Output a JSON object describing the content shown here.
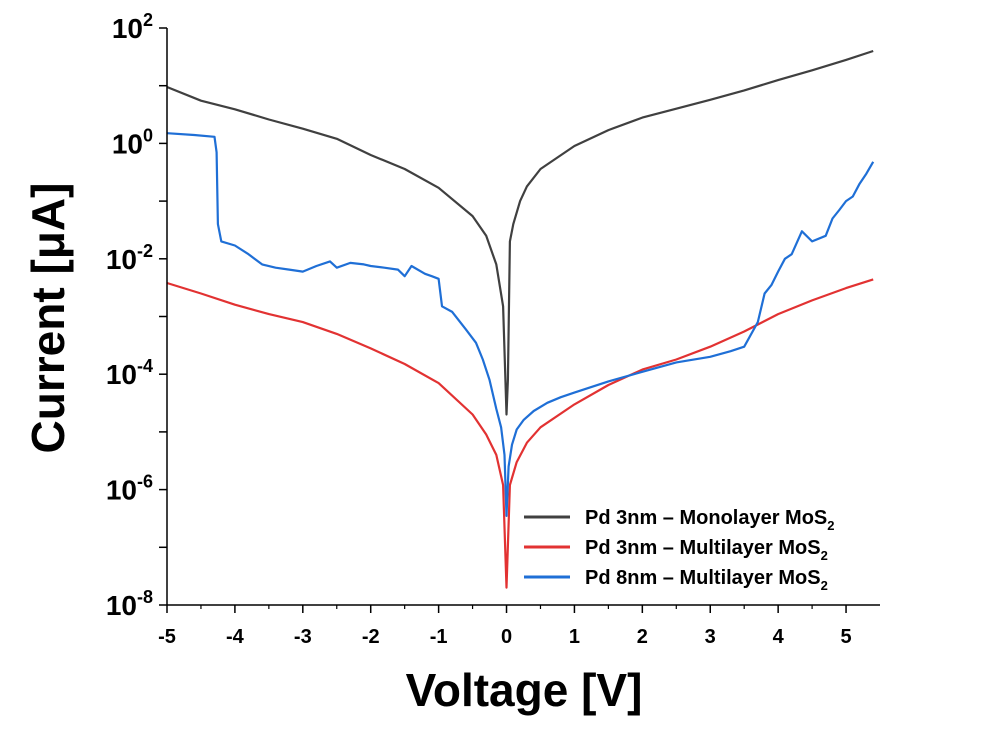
{
  "chart_data": {
    "type": "line",
    "xlabel": "Voltage [V]",
    "ylabel": "Current [μA]",
    "yscale": "log",
    "xlim": [
      -5,
      5.5
    ],
    "ylim": [
      1e-08,
      100
    ],
    "xticks": [
      -5,
      -4,
      -3,
      -2,
      -1,
      0,
      1,
      2,
      3,
      4,
      5
    ],
    "xtick_labels": [
      "-5",
      "-4",
      "-3",
      "-2",
      "-1",
      "0",
      "1",
      "2",
      "3",
      "4",
      "5"
    ],
    "yticks": [
      {
        "value": 100,
        "base": "10",
        "exp": "2"
      },
      {
        "value": 1,
        "base": "10",
        "exp": "0"
      },
      {
        "value": 0.01,
        "base": "10",
        "exp": "-2"
      },
      {
        "value": 0.0001,
        "base": "10",
        "exp": "-4"
      },
      {
        "value": 1e-06,
        "base": "10",
        "exp": "-6"
      },
      {
        "value": 1e-08,
        "base": "10",
        "exp": "-8"
      }
    ],
    "grid": false,
    "legend_position": "bottom-right",
    "series": [
      {
        "name": "Pd 3nm – Monolayer MoS",
        "name_sub": "2",
        "color": "#404040",
        "points": [
          [
            -5.0,
            9.5
          ],
          [
            -4.5,
            5.5
          ],
          [
            -4.0,
            3.9
          ],
          [
            -3.5,
            2.6
          ],
          [
            -3.0,
            1.8
          ],
          [
            -2.5,
            1.2
          ],
          [
            -2.0,
            0.63
          ],
          [
            -1.5,
            0.36
          ],
          [
            -1.0,
            0.17
          ],
          [
            -0.5,
            0.055
          ],
          [
            -0.3,
            0.025
          ],
          [
            -0.15,
            0.008
          ],
          [
            -0.05,
            0.0015
          ],
          [
            0.0,
            2e-05
          ],
          [
            0.02,
            8e-05
          ],
          [
            0.05,
            0.02
          ],
          [
            0.1,
            0.04
          ],
          [
            0.2,
            0.1
          ],
          [
            0.3,
            0.18
          ],
          [
            0.5,
            0.36
          ],
          [
            1.0,
            0.9
          ],
          [
            1.5,
            1.7
          ],
          [
            2.0,
            2.8
          ],
          [
            2.5,
            4.0
          ],
          [
            3.0,
            5.7
          ],
          [
            3.5,
            8.3
          ],
          [
            4.0,
            12.5
          ],
          [
            4.5,
            18.5
          ],
          [
            5.0,
            28
          ],
          [
            5.4,
            40
          ]
        ]
      },
      {
        "name": "Pd 3nm – Multilayer MoS",
        "name_sub": "2",
        "color": "#e23232",
        "points": [
          [
            -5.0,
            0.0038
          ],
          [
            -4.5,
            0.0025
          ],
          [
            -4.0,
            0.0016
          ],
          [
            -3.5,
            0.0011
          ],
          [
            -3.0,
            0.0008
          ],
          [
            -2.5,
            0.0005
          ],
          [
            -2.0,
            0.00028
          ],
          [
            -1.5,
            0.00015
          ],
          [
            -1.0,
            7e-05
          ],
          [
            -0.5,
            2e-05
          ],
          [
            -0.3,
            9e-06
          ],
          [
            -0.15,
            4e-06
          ],
          [
            -0.05,
            1.2e-06
          ],
          [
            0.0,
            2e-08
          ],
          [
            0.05,
            1.2e-06
          ],
          [
            0.15,
            3e-06
          ],
          [
            0.3,
            6.5e-06
          ],
          [
            0.5,
            1.2e-05
          ],
          [
            1.0,
            3e-05
          ],
          [
            1.5,
            6.5e-05
          ],
          [
            2.0,
            0.00012
          ],
          [
            2.5,
            0.00018
          ],
          [
            3.0,
            0.0003
          ],
          [
            3.5,
            0.00055
          ],
          [
            4.0,
            0.0011
          ],
          [
            4.5,
            0.0019
          ],
          [
            5.0,
            0.0031
          ],
          [
            5.4,
            0.0044
          ]
        ]
      },
      {
        "name": "Pd 8nm – Multilayer MoS",
        "name_sub": "2",
        "color": "#1f6fd6",
        "points": [
          [
            -5.0,
            1.5
          ],
          [
            -4.6,
            1.4
          ],
          [
            -4.3,
            1.3
          ],
          [
            -4.27,
            0.7
          ],
          [
            -4.25,
            0.04
          ],
          [
            -4.2,
            0.02
          ],
          [
            -4.0,
            0.017
          ],
          [
            -3.8,
            0.012
          ],
          [
            -3.6,
            0.008
          ],
          [
            -3.4,
            0.007
          ],
          [
            -3.2,
            0.0065
          ],
          [
            -3.0,
            0.006
          ],
          [
            -2.8,
            0.0075
          ],
          [
            -2.6,
            0.009
          ],
          [
            -2.5,
            0.007
          ],
          [
            -2.3,
            0.0085
          ],
          [
            -2.1,
            0.008
          ],
          [
            -2.0,
            0.0075
          ],
          [
            -1.8,
            0.007
          ],
          [
            -1.6,
            0.0065
          ],
          [
            -1.5,
            0.005
          ],
          [
            -1.4,
            0.0075
          ],
          [
            -1.2,
            0.0055
          ],
          [
            -1.1,
            0.005
          ],
          [
            -1.0,
            0.0045
          ],
          [
            -0.95,
            0.0015
          ],
          [
            -0.8,
            0.0012
          ],
          [
            -0.6,
            0.0006
          ],
          [
            -0.45,
            0.00035
          ],
          [
            -0.35,
            0.00018
          ],
          [
            -0.25,
            8e-05
          ],
          [
            -0.15,
            2.5e-05
          ],
          [
            -0.08,
            1.2e-05
          ],
          [
            -0.03,
            4e-06
          ],
          [
            0.0,
            3.5e-07
          ],
          [
            0.03,
            2.5e-06
          ],
          [
            0.08,
            6e-06
          ],
          [
            0.15,
            1.1e-05
          ],
          [
            0.25,
            1.6e-05
          ],
          [
            0.4,
            2.3e-05
          ],
          [
            0.6,
            3.2e-05
          ],
          [
            0.8,
            4e-05
          ],
          [
            1.0,
            4.8e-05
          ],
          [
            1.5,
            7.5e-05
          ],
          [
            2.0,
            0.00011
          ],
          [
            2.5,
            0.00016
          ],
          [
            3.0,
            0.0002
          ],
          [
            3.3,
            0.00025
          ],
          [
            3.5,
            0.0003
          ],
          [
            3.7,
            0.0008
          ],
          [
            3.8,
            0.0025
          ],
          [
            3.9,
            0.0035
          ],
          [
            4.0,
            0.006
          ],
          [
            4.1,
            0.01
          ],
          [
            4.2,
            0.012
          ],
          [
            4.35,
            0.03
          ],
          [
            4.5,
            0.02
          ],
          [
            4.7,
            0.025
          ],
          [
            4.8,
            0.05
          ],
          [
            4.9,
            0.07
          ],
          [
            5.0,
            0.1
          ],
          [
            5.1,
            0.12
          ],
          [
            5.2,
            0.2
          ],
          [
            5.3,
            0.3
          ],
          [
            5.4,
            0.48
          ]
        ]
      }
    ]
  }
}
